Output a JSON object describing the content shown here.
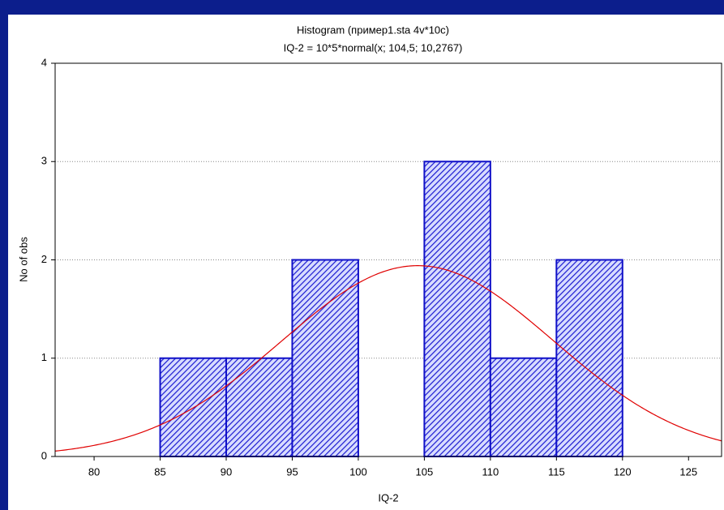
{
  "chart_data": {
    "type": "histogram",
    "title": "Histogram (пример1.sta 4v*10c)",
    "subtitle": "IQ-2 = 10*5*normal(x; 104,5; 10,2767)",
    "xlabel": "IQ-2",
    "ylabel": "No of obs",
    "bins": [
      85,
      90,
      95,
      100,
      105,
      110,
      115,
      120
    ],
    "values": [
      1,
      1,
      2,
      0,
      3,
      1,
      2
    ],
    "color": "#1010c8",
    "fit": {
      "n": 10,
      "bin_width": 5,
      "mean": 104.5,
      "sd": 10.2767,
      "color": "#e00000"
    },
    "xlim": [
      77.05,
      127.5
    ],
    "ylim": [
      0,
      4
    ],
    "xticks": [
      80,
      85,
      90,
      95,
      100,
      105,
      110,
      115,
      120,
      125
    ],
    "yticks": [
      0,
      1,
      2,
      3,
      4
    ],
    "grid": true
  }
}
